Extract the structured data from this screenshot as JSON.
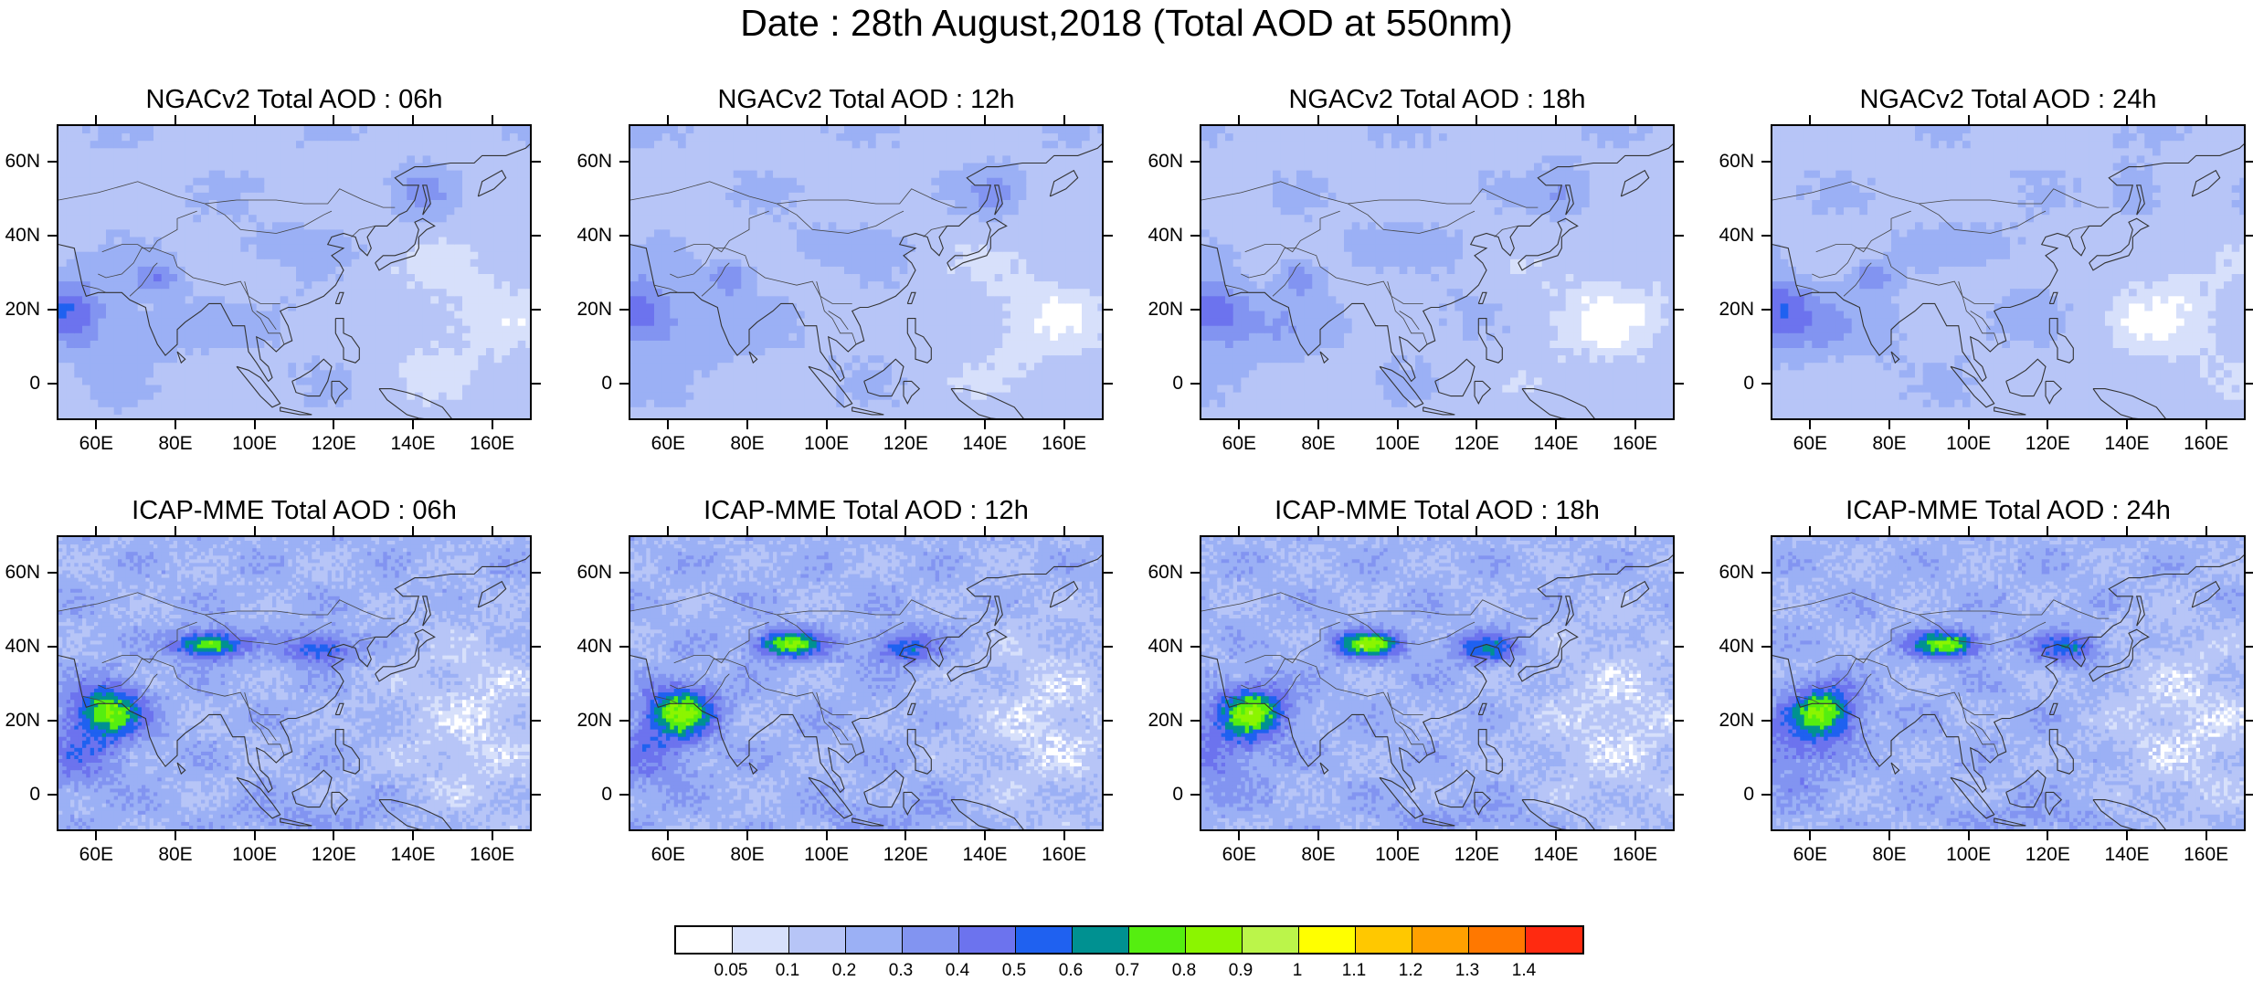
{
  "title": "Date : 28th August,2018 (Total AOD at 550nm)",
  "panels": [
    {
      "title": "NGACv2 Total AOD : 06h",
      "model": "NGAC"
    },
    {
      "title": "NGACv2 Total AOD : 12h",
      "model": "NGAC"
    },
    {
      "title": "NGACv2 Total AOD : 18h",
      "model": "NGAC"
    },
    {
      "title": "NGACv2 Total AOD : 24h",
      "model": "NGAC"
    },
    {
      "title": "ICAP-MME Total AOD : 06h",
      "model": "ICAP"
    },
    {
      "title": "ICAP-MME Total AOD : 12h",
      "model": "ICAP"
    },
    {
      "title": "ICAP-MME Total AOD : 18h",
      "model": "ICAP"
    },
    {
      "title": "ICAP-MME Total AOD : 24h",
      "model": "ICAP"
    }
  ],
  "axes": {
    "lon_range": [
      50,
      170
    ],
    "lat_range": [
      -10,
      70
    ],
    "x_ticks": [
      "60E",
      "80E",
      "100E",
      "120E",
      "140E",
      "160E"
    ],
    "x_tick_values": [
      60,
      80,
      100,
      120,
      140,
      160
    ],
    "y_ticks": [
      "60N",
      "40N",
      "20N",
      "0"
    ],
    "y_tick_values": [
      60,
      40,
      20,
      0
    ]
  },
  "colorbar": {
    "labels": [
      "0.05",
      "0.1",
      "0.2",
      "0.3",
      "0.4",
      "0.5",
      "0.6",
      "0.7",
      "0.8",
      "0.9",
      "1",
      "1.1",
      "1.2",
      "1.3",
      "1.4"
    ],
    "colors": [
      "#ffffff",
      "#d7e0fb",
      "#b7c5f7",
      "#9bb0f5",
      "#8294f1",
      "#6c73ee",
      "#1f61f0",
      "#009191",
      "#55ee10",
      "#8bf500",
      "#bbf54a",
      "#ffff00",
      "#ffc800",
      "#ffa000",
      "#ff7800",
      "#ff2a10"
    ]
  }
}
